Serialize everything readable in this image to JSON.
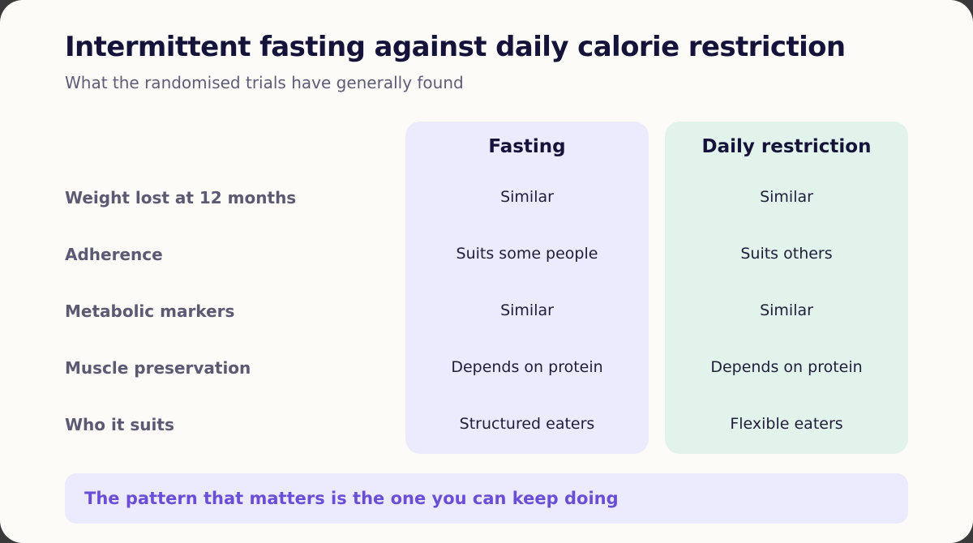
{
  "header": {
    "title": "Intermittent fasting against daily calorie restriction",
    "subtitle": "What the randomised trials have generally found"
  },
  "columns": [
    {
      "label": "Fasting",
      "color": "#eceafd"
    },
    {
      "label": "Daily restriction",
      "color": "#e2f3ec"
    }
  ],
  "rows": [
    {
      "label": "Weight lost at 12 months",
      "fasting": "Similar",
      "daily": "Similar"
    },
    {
      "label": "Adherence",
      "fasting": "Suits some people",
      "daily": "Suits others"
    },
    {
      "label": "Metabolic markers",
      "fasting": "Similar",
      "daily": "Similar"
    },
    {
      "label": "Muscle preservation",
      "fasting": "Depends on protein",
      "daily": "Depends on protein"
    },
    {
      "label": "Who it suits",
      "fasting": "Structured eaters",
      "daily": "Flexible eaters"
    }
  ],
  "footer": {
    "text": "The pattern that matters is the one you can keep doing",
    "accent": "#6a4fd6"
  }
}
